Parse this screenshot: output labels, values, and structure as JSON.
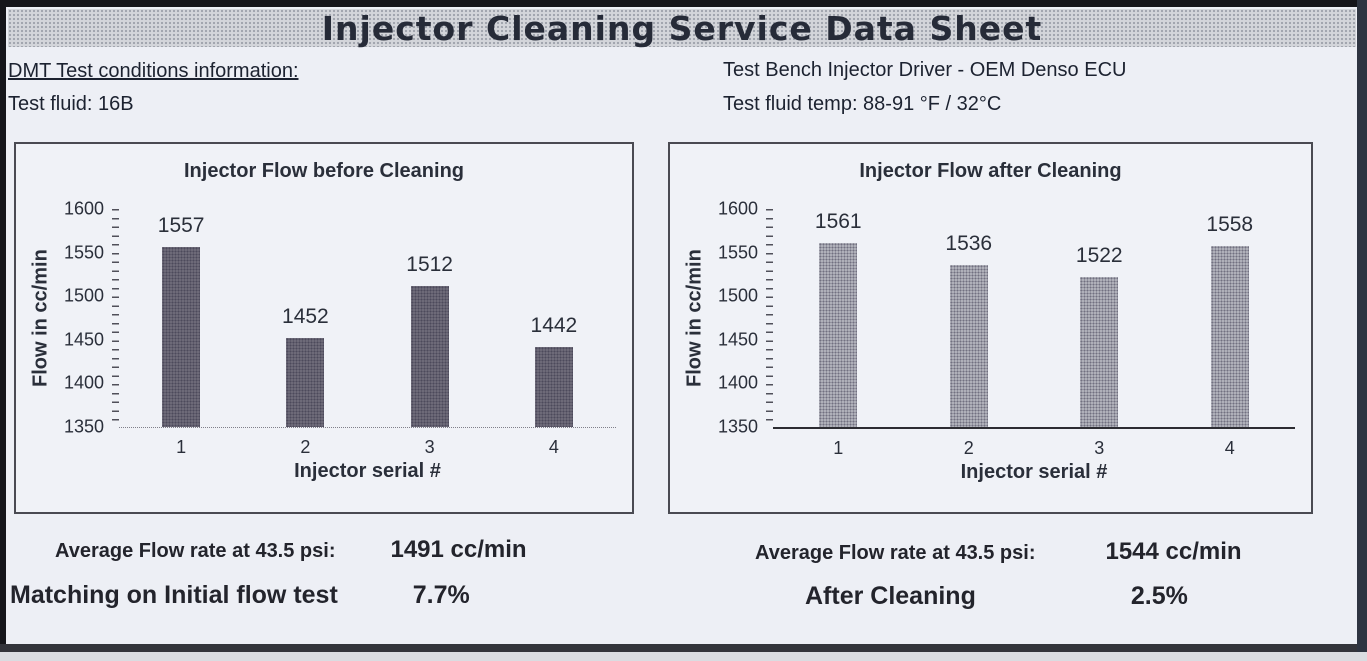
{
  "title": "Injector Cleaning Service Data Sheet",
  "header": {
    "left": {
      "conditions_heading": "DMT Test conditions information:",
      "test_fluid": "Test fluid: 16B"
    },
    "right": {
      "bench_driver": "Test Bench Injector Driver - OEM Denso ECU",
      "fluid_temp": "Test fluid temp: 88-91 °F / 32°C"
    }
  },
  "chart_data": [
    {
      "type": "bar",
      "title": "Injector Flow before Cleaning",
      "categories": [
        "1",
        "2",
        "3",
        "4"
      ],
      "values": [
        1557,
        1452,
        1512,
        1442
      ],
      "xlabel": "Injector serial #",
      "ylabel": "Flow in cc/min",
      "ylim": [
        1350,
        1600
      ],
      "yticks": [
        1600,
        1550,
        1500,
        1450,
        1400,
        1350
      ],
      "bar_color": "#6e6b79",
      "grid": false,
      "legend": "none"
    },
    {
      "type": "bar",
      "title": "Injector Flow after Cleaning",
      "categories": [
        "1",
        "2",
        "3",
        "4"
      ],
      "values": [
        1561,
        1536,
        1522,
        1558
      ],
      "xlabel": "Injector serial #",
      "ylabel": "Flow in cc/min",
      "ylim": [
        1350,
        1600
      ],
      "yticks": [
        1600,
        1550,
        1500,
        1450,
        1400,
        1350
      ],
      "bar_color": "#b1b2bb",
      "grid": false,
      "legend": "none"
    }
  ],
  "summary": {
    "left": {
      "avg_label": "Average Flow rate at 43.5 psi:",
      "avg_value": "1491 cc/min",
      "result_label": "Matching on Initial flow test",
      "result_value": "7.7%"
    },
    "right": {
      "avg_label": "Average Flow rate at 43.5 psi:",
      "avg_value": "1544 cc/min",
      "result_label": "After Cleaning",
      "result_value": "2.5%"
    }
  }
}
